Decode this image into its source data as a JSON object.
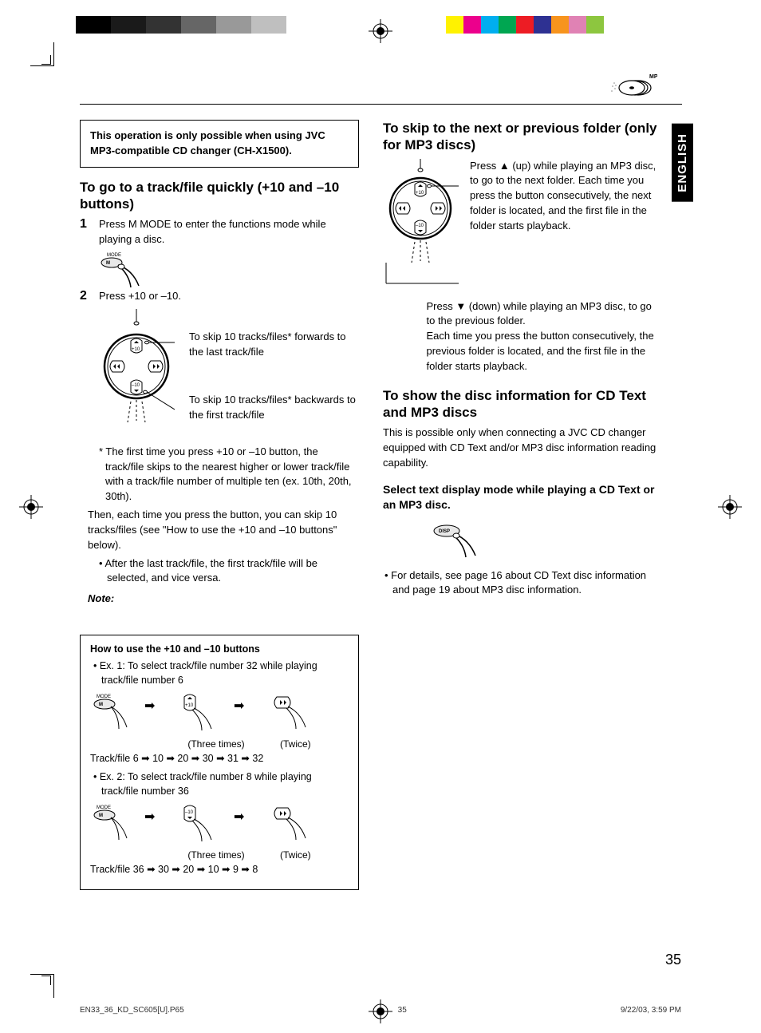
{
  "colorbar": {
    "left": [
      "#000000",
      "#000000",
      "#1a1a1a",
      "#1a1a1a",
      "#333333",
      "#333333",
      "#666666",
      "#666666",
      "#999999",
      "#999999",
      "#bfbfbf",
      "#bfbfbf"
    ],
    "right": [
      "#fff200",
      "#ec008c",
      "#00aeef",
      "#00a651",
      "#ed1c24",
      "#2e3192",
      "#f7941d",
      "#e082b4",
      "#8dc63f",
      "#ffffff"
    ]
  },
  "language_tab": "ENGLISH",
  "mp3_label": "MP3",
  "notice": "This operation is only possible when using JVC MP3-compatible CD changer (CH-X1500).",
  "h_goto": "To go to a track/file quickly (+10 and –10 buttons)",
  "step1_num": "1",
  "step1": "Press M MODE to enter the functions mode while playing a disc.",
  "mode_label": "MODE",
  "step2_num": "2",
  "step2": "Press +10 or –10.",
  "skip_fwd": "To skip 10 tracks/files* forwards to the last track/file",
  "skip_back": "To skip 10 tracks/files* backwards to the first track/file",
  "asterisk": "* The first time you press +10 or –10 button, the track/file skips to the nearest higher or lower track/file with a track/file number of multiple ten (ex. 10th, 20th, 30th).",
  "then_text": "Then, each time you press the button, you can skip 10 tracks/files (see \"How to use the +10 and –10 buttons\" below).",
  "after_text": "• After the last track/file, the first track/file will be selected, and vice versa.",
  "note_label": "Note:",
  "howto": {
    "title": "How to use the +10 and –10 buttons",
    "ex1": "• Ex. 1: To select track/file number 32 while playing track/file number 6",
    "three": "(Three times)",
    "twice": "(Twice)",
    "seq1": "Track/file 6    ➡ 10 ➡ 20 ➡ 30    ➡ 31 ➡ 32",
    "ex2": "• Ex. 2: To select track/file number 8 while playing track/file number 36",
    "seq2": "Track/file 36   ➡ 30 ➡ 20 ➡ 10    ➡ 9 ➡ 8"
  },
  "h_skip": "To skip to the next or previous folder (only for MP3 discs)",
  "skip_up": "Press ▲ (up) while playing an MP3 disc, to go to the next folder. Each time you press the button consecutively, the next folder is located, and the first file in the folder starts playback.",
  "skip_down": "Press ▼ (down) while playing an MP3 disc, to go to the previous folder.",
  "skip_down2": "Each time you press the button consecutively, the previous folder is located, and the first file in the folder starts playback.",
  "h_show": "To show the disc information for CD Text and MP3 discs",
  "show_text": "This is possible only when connecting a JVC CD changer equipped with CD Text and/or MP3 disc information reading capability.",
  "select_text": "Select text display mode while playing a CD Text or an MP3 disc.",
  "disp_label": "DISP",
  "details": "• For details, see page 16 about CD Text disc information and page 19 about MP3 disc information.",
  "page_number": "35",
  "footer_file": "EN33_36_KD_SC605[U].P65",
  "footer_page": "35",
  "footer_date": "9/22/03, 3:59 PM"
}
